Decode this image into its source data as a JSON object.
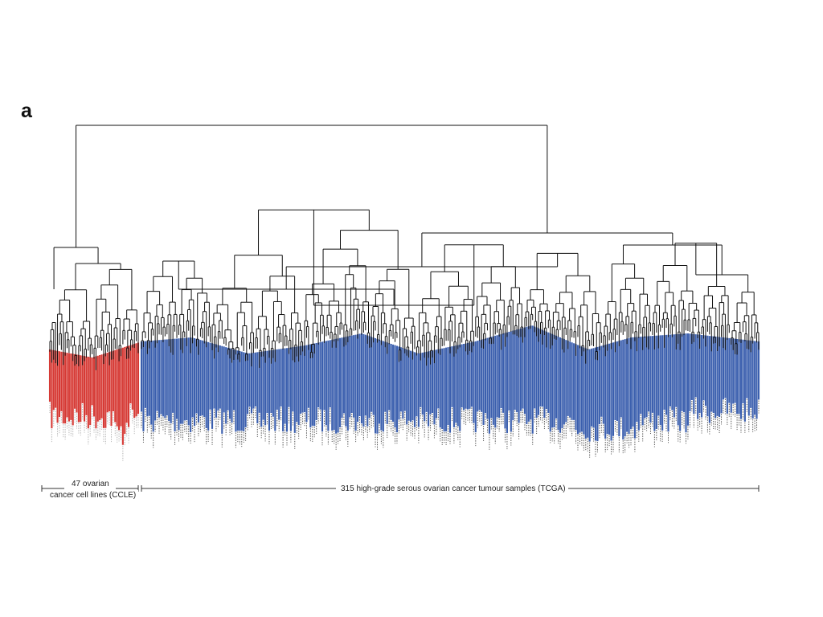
{
  "panel_label": "a",
  "colors": {
    "ccle": "#d63a35",
    "tcga": "#3b5fae",
    "tree": "#111111",
    "bracket": "#333333",
    "sample_label": "#b4b4b4"
  },
  "groups": [
    {
      "id": "ccle",
      "name_line1": "47 ovarian",
      "name_line2": "cancer cell lines (CCLE)",
      "count": 47
    },
    {
      "id": "tcga",
      "name": "315 high-grade serous ovarian cancer tumour samples (TCGA)",
      "count": 315
    }
  ]
}
